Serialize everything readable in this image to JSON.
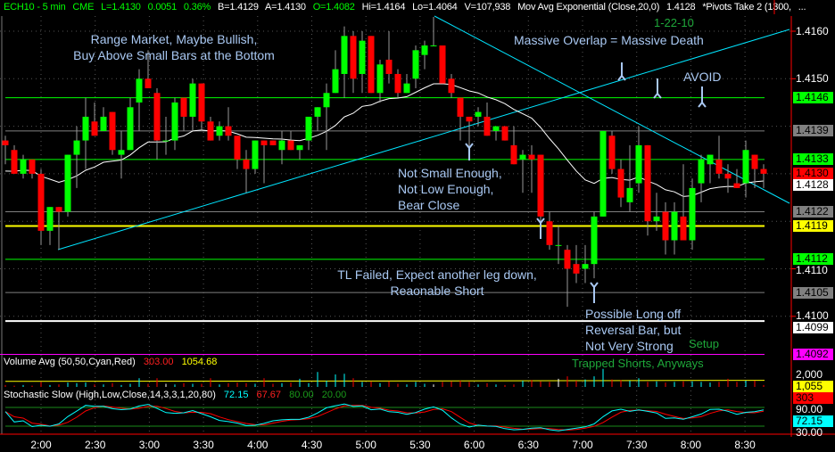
{
  "header": {
    "symbol": "ECH10 - 5 min",
    "exchange": "CME",
    "last": "L=1.4130",
    "change": "0.0051",
    "change_pct": "0.36%",
    "bid": "B=1.4129",
    "ask": "A=1.4130",
    "open": "O=1.4082",
    "high": "Hi=1.4164",
    "low": "Lo=1.4064",
    "volume": "V=107,938",
    "study": "Mov Avg Exponential (Close,20,0)",
    "study_value": "1.4128",
    "pivots": "*Pivots Take 2 (1300,",
    "more": "..."
  },
  "annotations": {
    "range1": "Range Market, Maybe Bullish,",
    "range2": "Buy Above Small Bars at the Bottom",
    "date": "1-22-10",
    "overlap": "Massive Overlap = Massive Death",
    "avoid": "AVOID",
    "notsmall1": "Not Small Enough,",
    "notsmall2": "Not Low Enough,",
    "notsmall3": "Bear Close",
    "tl1": "TL Failed, Expect another leg down,",
    "tl2": "Reaonable Short",
    "long1": "Possible Long off",
    "long2": "Reversal Bar, but",
    "long3": "Not Very Strong",
    "setup": "Setup",
    "trapped": "Trapped Shorts, Anyways"
  },
  "price_axis": {
    "ticks": [
      "1.4160",
      "1.4150",
      "1.4110",
      "1.4100"
    ],
    "tick_values": [
      1.416,
      1.415,
      1.411,
      1.41
    ],
    "grid_values": [
      1.416,
      1.415,
      1.414,
      1.413,
      1.412,
      1.411,
      1.41
    ]
  },
  "price_labels": [
    {
      "text": "1.4146",
      "bg": "#00ff00",
      "fg": "#000000"
    },
    {
      "text": "1.4139",
      "bg": "#808080",
      "fg": "#000000"
    },
    {
      "text": "1.4133",
      "bg": "#00ff00",
      "fg": "#000000"
    },
    {
      "text": "1.4130",
      "bg": "#ff0000",
      "fg": "#000000"
    },
    {
      "text": "1.4128",
      "bg": "#ffffff",
      "fg": "#000000"
    },
    {
      "text": "1.4122",
      "bg": "#808080",
      "fg": "#000000"
    },
    {
      "text": "1.4119",
      "bg": "#ffff00",
      "fg": "#000000"
    },
    {
      "text": "1.4112",
      "bg": "#00ff00",
      "fg": "#000000"
    },
    {
      "text": "1.4105",
      "bg": "#808080",
      "fg": "#000000"
    },
    {
      "text": "1.4099",
      "bg": "#ffffff",
      "fg": "#000000"
    },
    {
      "text": "1.4092",
      "bg": "#ff00ff",
      "fg": "#000000"
    }
  ],
  "pivot_lines": [
    {
      "price": 1.4146,
      "color": "#00ff00"
    },
    {
      "price": 1.4139,
      "color": "#808080"
    },
    {
      "price": 1.4133,
      "color": "#00ff00"
    },
    {
      "price": 1.4122,
      "color": "#808080"
    },
    {
      "price": 1.4119,
      "color": "#ffff00"
    },
    {
      "price": 1.4112,
      "color": "#00ff00"
    },
    {
      "price": 1.4105,
      "color": "#808080"
    },
    {
      "price": 1.4099,
      "color": "#ffffff"
    },
    {
      "price": 1.4092,
      "color": "#ff00ff"
    }
  ],
  "volume_panel": {
    "title": "Volume Avg (50,50,Cyan,Red)",
    "value": "303.00",
    "avg": "1054.68",
    "axis_top": "2,000",
    "axis_avg": "1,055",
    "last_label": "303",
    "avg_value": 1055
  },
  "stoch_panel": {
    "title": "Stochastic Slow (High,Low,Close,14,3,3,1,20,80)",
    "k": "72.15",
    "d": "67.67",
    "ob": "80.00",
    "os": "20.00",
    "axis_top": "90.00",
    "axis_bottom": "30.00",
    "k_label": "72.15"
  },
  "colors": {
    "up": "#00ff00",
    "down": "#ff0000",
    "ema": "#ffffff",
    "trendline": "#00e5ff",
    "vol_up": "#00ffff",
    "vol_down": "#ff0000",
    "stoch_k": "#00ffff",
    "stoch_d": "#ff0000",
    "axis": "#ff0000"
  },
  "chart_data": {
    "type": "candlestick",
    "interval": "5 min",
    "time_labels": [
      "2:00",
      "2:30",
      "3:00",
      "3:30",
      "4:00",
      "4:30",
      "5:00",
      "5:30",
      "6:00",
      "6:30",
      "7:00",
      "7:30",
      "8:00",
      "8:30"
    ],
    "first_bar_time": "1:40",
    "ylim": [
      1.409,
      1.4163
    ],
    "ohlc": [
      [
        1.4137,
        1.4138,
        1.4132,
        1.4136
      ],
      [
        1.4135,
        1.4136,
        1.413,
        1.413
      ],
      [
        1.413,
        1.4134,
        1.4129,
        1.4133
      ],
      [
        1.4133,
        1.4133,
        1.4129,
        1.413
      ],
      [
        1.413,
        1.4131,
        1.4115,
        1.4118
      ],
      [
        1.4118,
        1.4123,
        1.4115,
        1.4123
      ],
      [
        1.4123,
        1.4123,
        1.4114,
        1.4122
      ],
      [
        1.4122,
        1.4134,
        1.4121,
        1.4134
      ],
      [
        1.4134,
        1.414,
        1.4127,
        1.4137
      ],
      [
        1.4137,
        1.4146,
        1.4131,
        1.4142
      ],
      [
        1.4141,
        1.4145,
        1.4138,
        1.4138
      ],
      [
        1.4139,
        1.4144,
        1.4139,
        1.4142
      ],
      [
        1.4143,
        1.4143,
        1.4134,
        1.4135
      ],
      [
        1.4134,
        1.4139,
        1.4129,
        1.4135
      ],
      [
        1.4135,
        1.4146,
        1.4135,
        1.4144
      ],
      [
        1.4145,
        1.4152,
        1.4139,
        1.415
      ],
      [
        1.415,
        1.4156,
        1.4148,
        1.4148
      ],
      [
        1.4147,
        1.4148,
        1.4133,
        1.4137
      ],
      [
        1.4137,
        1.4142,
        1.4134,
        1.4137
      ],
      [
        1.4137,
        1.4146,
        1.4135,
        1.4145
      ],
      [
        1.4146,
        1.4146,
        1.4139,
        1.4142
      ],
      [
        1.4142,
        1.415,
        1.4139,
        1.4149
      ],
      [
        1.4149,
        1.4149,
        1.4139,
        1.4141
      ],
      [
        1.4141,
        1.4142,
        1.4137,
        1.4137
      ],
      [
        1.4138,
        1.4141,
        1.4137,
        1.414
      ],
      [
        1.414,
        1.4144,
        1.4137,
        1.4138
      ],
      [
        1.4138,
        1.4138,
        1.4131,
        1.4133
      ],
      [
        1.4133,
        1.4135,
        1.4126,
        1.4131
      ],
      [
        1.4131,
        1.4137,
        1.413,
        1.4137
      ],
      [
        1.4137,
        1.4137,
        1.4128,
        1.4136
      ],
      [
        1.4137,
        1.4137,
        1.4136,
        1.4136
      ],
      [
        1.4135,
        1.4139,
        1.4132,
        1.4137
      ],
      [
        1.4137,
        1.4139,
        1.4135,
        1.4135
      ],
      [
        1.4135,
        1.4136,
        1.4133,
        1.4136
      ],
      [
        1.4137,
        1.4142,
        1.4135,
        1.4142
      ],
      [
        1.4142,
        1.4144,
        1.4139,
        1.4144
      ],
      [
        1.4144,
        1.4149,
        1.4135,
        1.4147
      ],
      [
        1.4147,
        1.4156,
        1.4147,
        1.4152
      ],
      [
        1.4151,
        1.4161,
        1.4146,
        1.4159
      ],
      [
        1.4159,
        1.416,
        1.4147,
        1.415
      ],
      [
        1.4151,
        1.416,
        1.4147,
        1.4158
      ],
      [
        1.4159,
        1.4159,
        1.4147,
        1.4147
      ],
      [
        1.4147,
        1.4154,
        1.4145,
        1.4153
      ],
      [
        1.4154,
        1.416,
        1.4149,
        1.4151
      ],
      [
        1.4151,
        1.4152,
        1.4146,
        1.4147
      ],
      [
        1.4147,
        1.4151,
        1.4147,
        1.4149
      ],
      [
        1.415,
        1.4157,
        1.4148,
        1.4156
      ],
      [
        1.4155,
        1.4158,
        1.4152,
        1.4157
      ],
      [
        1.4157,
        1.4163,
        1.4157,
        1.4157
      ],
      [
        1.4157,
        1.4157,
        1.4149,
        1.4149
      ],
      [
        1.415,
        1.4151,
        1.4146,
        1.4147
      ],
      [
        1.4146,
        1.4146,
        1.4137,
        1.4142
      ],
      [
        1.4142,
        1.4142,
        1.4135,
        1.4141
      ],
      [
        1.4142,
        1.4144,
        1.414,
        1.4143
      ],
      [
        1.4142,
        1.4145,
        1.4138,
        1.4138
      ],
      [
        1.4139,
        1.414,
        1.4137,
        1.414
      ],
      [
        1.414,
        1.414,
        1.4137,
        1.4137
      ],
      [
        1.4136,
        1.414,
        1.4132,
        1.4132
      ],
      [
        1.4133,
        1.4135,
        1.4126,
        1.4134
      ],
      [
        1.4134,
        1.4136,
        1.4126,
        1.4133
      ],
      [
        1.4134,
        1.4134,
        1.4119,
        1.4121
      ],
      [
        1.412,
        1.4122,
        1.4114,
        1.4115
      ],
      [
        1.4115,
        1.4119,
        1.4111,
        1.4115
      ],
      [
        1.4114,
        1.4115,
        1.4102,
        1.411
      ],
      [
        1.4111,
        1.4115,
        1.4107,
        1.4109
      ],
      [
        1.411,
        1.4115,
        1.4107,
        1.4111
      ],
      [
        1.4111,
        1.4122,
        1.4108,
        1.4121
      ],
      [
        1.4121,
        1.4139,
        1.4121,
        1.4139
      ],
      [
        1.4138,
        1.4139,
        1.413,
        1.4131
      ],
      [
        1.4131,
        1.4133,
        1.4123,
        1.4125
      ],
      [
        1.4124,
        1.4136,
        1.4122,
        1.4127
      ],
      [
        1.4128,
        1.414,
        1.4126,
        1.4136
      ],
      [
        1.4136,
        1.4136,
        1.4117,
        1.412
      ],
      [
        1.412,
        1.4126,
        1.4118,
        1.4121
      ],
      [
        1.4122,
        1.4124,
        1.4113,
        1.4116
      ],
      [
        1.4116,
        1.4124,
        1.4113,
        1.4122
      ],
      [
        1.4121,
        1.4132,
        1.4116,
        1.4116
      ],
      [
        1.4116,
        1.4129,
        1.4114,
        1.4127
      ],
      [
        1.4128,
        1.4134,
        1.4124,
        1.4133
      ],
      [
        1.4132,
        1.4134,
        1.4128,
        1.4134
      ],
      [
        1.4133,
        1.4138,
        1.4129,
        1.413
      ],
      [
        1.413,
        1.4132,
        1.4126,
        1.4129
      ],
      [
        1.4128,
        1.4131,
        1.4127,
        1.4127
      ],
      [
        1.4128,
        1.4137,
        1.4125,
        1.4135
      ],
      [
        1.4134,
        1.4134,
        1.4127,
        1.4131
      ],
      [
        1.4131,
        1.4132,
        1.4127,
        1.413
      ]
    ],
    "volume": [
      300,
      200,
      300,
      200,
      800,
      300,
      400,
      700,
      600,
      700,
      400,
      400,
      600,
      300,
      500,
      1400,
      500,
      1400,
      500,
      400,
      600,
      500,
      500,
      1400,
      400,
      600,
      700,
      600,
      500,
      1400,
      500,
      600,
      700,
      1300,
      600,
      2400,
      1000,
      2000,
      2100,
      1400,
      800,
      900,
      600,
      900,
      500,
      400,
      800,
      500,
      400,
      800,
      900,
      1000,
      800,
      400,
      600,
      400,
      300,
      400,
      1000,
      1100,
      900,
      800,
      1300,
      1700,
      1000,
      1200,
      1700,
      2900,
      1200,
      1100,
      1000,
      1400,
      800,
      900,
      700,
      800,
      900,
      900,
      800,
      700,
      800,
      1300,
      800,
      1000,
      1000,
      303
    ]
  }
}
